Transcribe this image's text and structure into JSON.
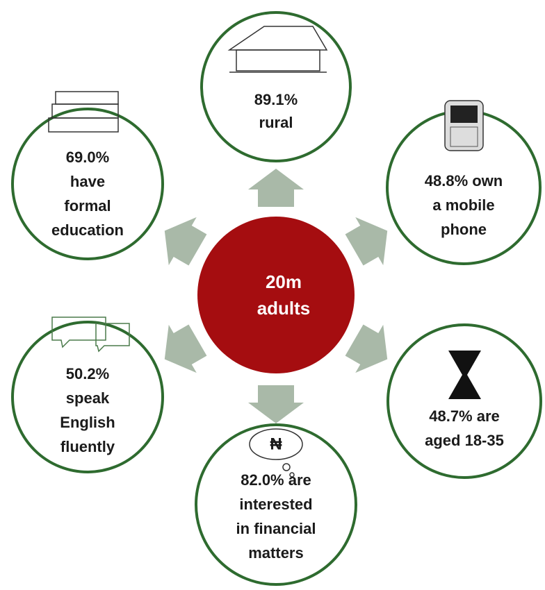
{
  "center": {
    "lines": [
      "20m",
      "adults"
    ]
  },
  "nodes": [
    {
      "lines": [
        "89.1%",
        "rural"
      ]
    },
    {
      "lines": [
        "48.8% own",
        "a mobile",
        "phone"
      ]
    },
    {
      "lines": [
        "48.7%  are",
        "aged 18-35"
      ]
    },
    {
      "lines": [
        "82.0% are",
        "interested",
        "in financial",
        "matters"
      ],
      "icon_text": "₦"
    },
    {
      "lines": [
        "50.2%",
        "speak",
        "English",
        "fluently"
      ]
    },
    {
      "lines": [
        "69.0%",
        "have",
        "formal",
        "education"
      ]
    }
  ]
}
